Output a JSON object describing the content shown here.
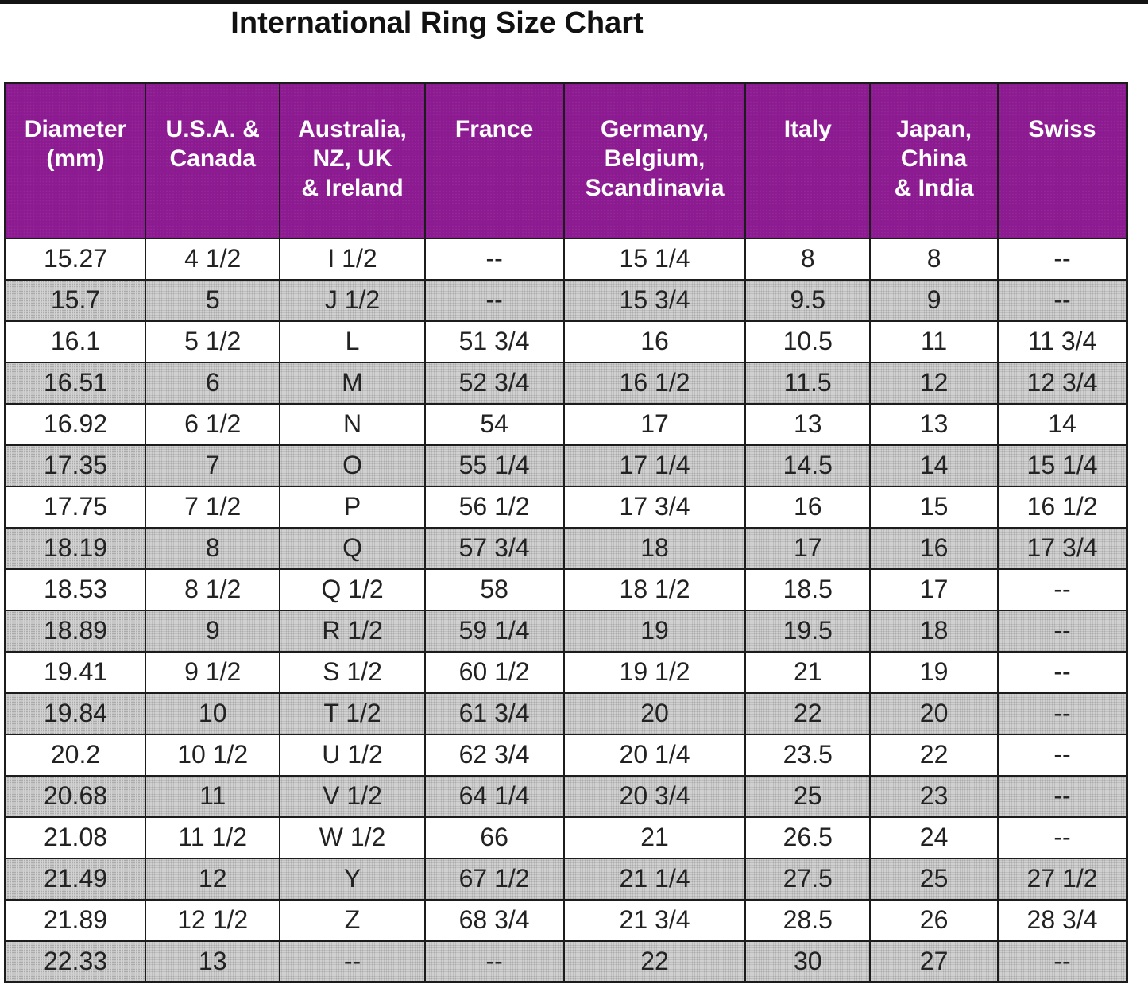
{
  "page": {
    "title": "International Ring Size Chart"
  },
  "colors": {
    "header_background": "#8C1A90",
    "header_text": "#FFFFFF",
    "row_gray": "#CCCCCC",
    "row_white": "#FFFFFF",
    "border": "#1C1C1C",
    "top_bar": "#141414",
    "title_text": "#111111"
  },
  "chart_data": {
    "type": "table",
    "title": "International Ring Size Chart",
    "columns": [
      "Diameter\n(mm)",
      "U.S.A. &\nCanada",
      "Australia,\nNZ, UK\n& Ireland",
      "France",
      "Germany,\nBelgium,\nScandinavia",
      "Italy",
      "Japan,\nChina\n& India",
      "Swiss"
    ],
    "rows": [
      [
        "15.27",
        "4 1/2",
        "I 1/2",
        "--",
        "15 1/4",
        "8",
        "8",
        "--"
      ],
      [
        "15.7",
        "5",
        "J 1/2",
        "--",
        "15 3/4",
        "9.5",
        "9",
        "--"
      ],
      [
        "16.1",
        "5 1/2",
        "L",
        "51 3/4",
        "16",
        "10.5",
        "11",
        "11 3/4"
      ],
      [
        "16.51",
        "6",
        "M",
        "52 3/4",
        "16 1/2",
        "11.5",
        "12",
        "12 3/4"
      ],
      [
        "16.92",
        "6 1/2",
        "N",
        "54",
        "17",
        "13",
        "13",
        "14"
      ],
      [
        "17.35",
        "7",
        "O",
        "55 1/4",
        "17 1/4",
        "14.5",
        "14",
        "15 1/4"
      ],
      [
        "17.75",
        "7 1/2",
        "P",
        "56 1/2",
        "17 3/4",
        "16",
        "15",
        "16 1/2"
      ],
      [
        "18.19",
        "8",
        "Q",
        "57 3/4",
        "18",
        "17",
        "16",
        "17 3/4"
      ],
      [
        "18.53",
        "8 1/2",
        "Q 1/2",
        "58",
        "18 1/2",
        "18.5",
        "17",
        "--"
      ],
      [
        "18.89",
        "9",
        "R 1/2",
        "59 1/4",
        "19",
        "19.5",
        "18",
        "--"
      ],
      [
        "19.41",
        "9 1/2",
        "S 1/2",
        "60 1/2",
        "19 1/2",
        "21",
        "19",
        "--"
      ],
      [
        "19.84",
        "10",
        "T 1/2",
        "61 3/4",
        "20",
        "22",
        "20",
        "--"
      ],
      [
        "20.2",
        "10 1/2",
        "U 1/2",
        "62 3/4",
        "20 1/4",
        "23.5",
        "22",
        "--"
      ],
      [
        "20.68",
        "11",
        "V 1/2",
        "64 1/4",
        "20 3/4",
        "25",
        "23",
        "--"
      ],
      [
        "21.08",
        "11 1/2",
        "W 1/2",
        "66",
        "21",
        "26.5",
        "24",
        "--"
      ],
      [
        "21.49",
        "12",
        "Y",
        "67 1/2",
        "21 1/4",
        "27.5",
        "25",
        "27 1/2"
      ],
      [
        "21.89",
        "12 1/2",
        "Z",
        "68 3/4",
        "21 3/4",
        "28.5",
        "26",
        "28 3/4"
      ],
      [
        "22.33",
        "13",
        "--",
        "--",
        "22",
        "30",
        "27",
        "--"
      ]
    ],
    "layout": {
      "column_width_percents": [
        12.5,
        12.0,
        12.9,
        12.4,
        16.2,
        11.1,
        11.4,
        11.5
      ],
      "striping": "alternating white / dotted gray, first data row white",
      "legend": "none",
      "grid": "black cell borders"
    }
  }
}
